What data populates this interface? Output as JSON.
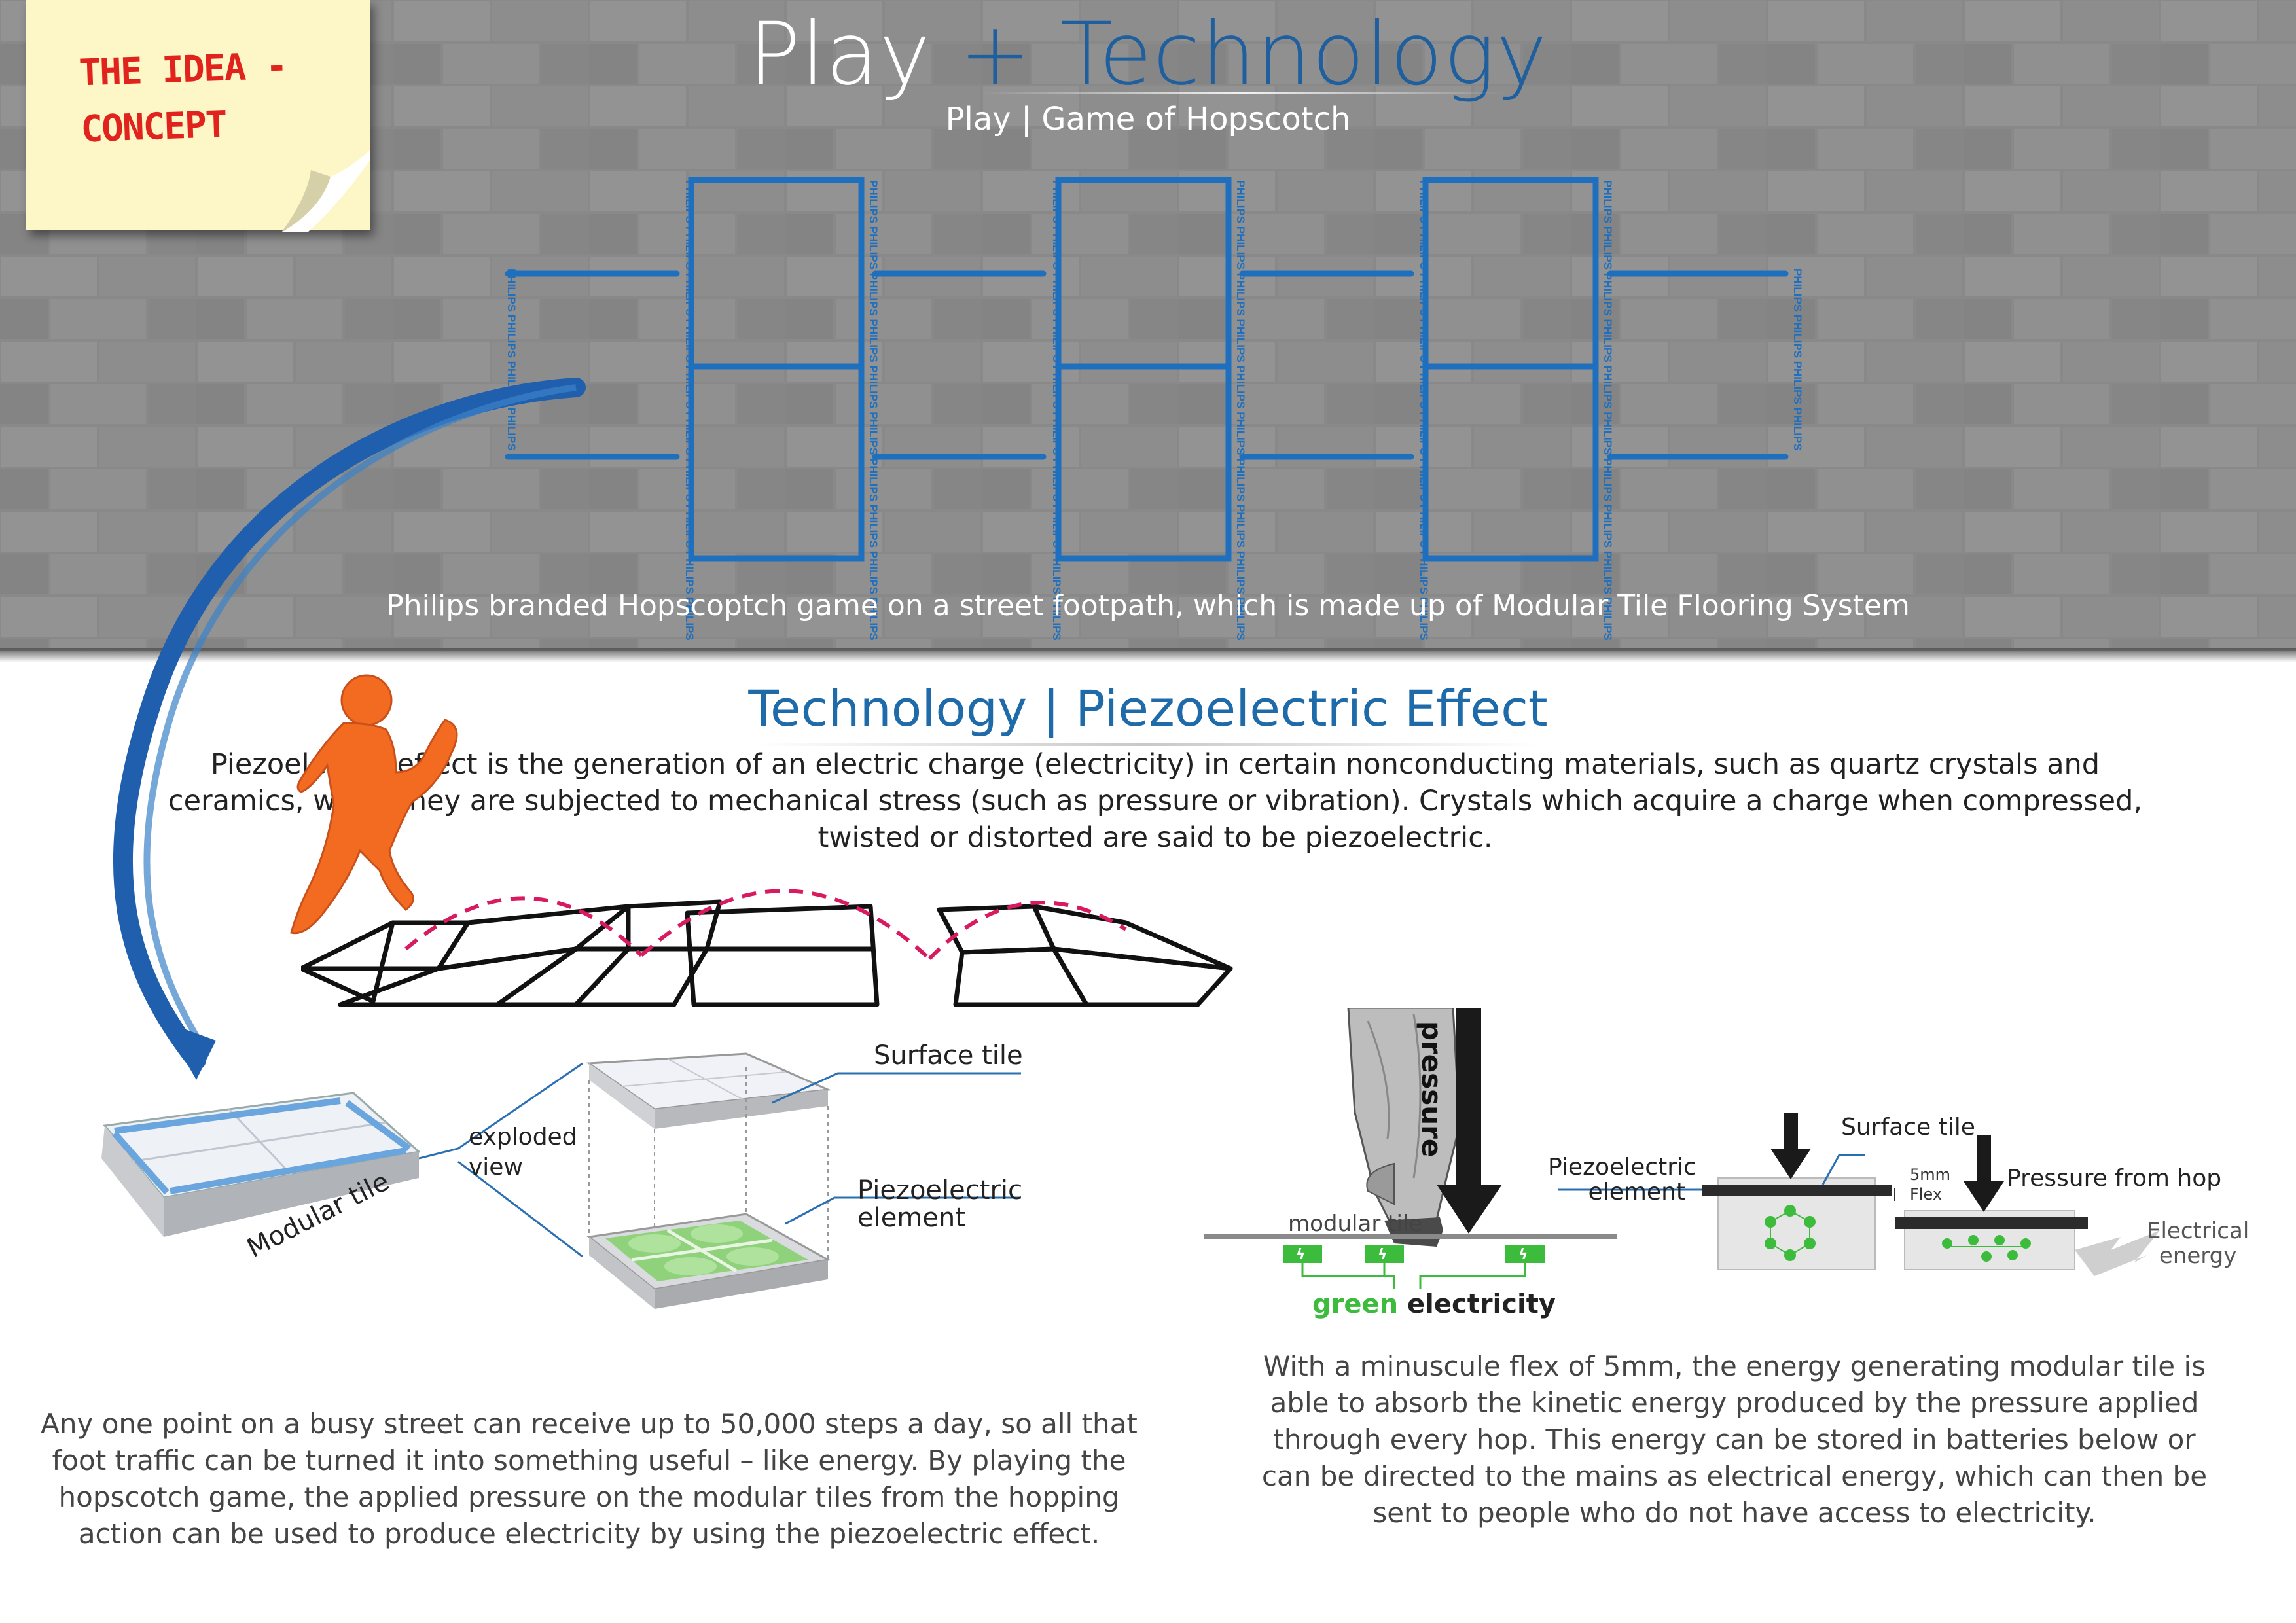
{
  "sticky_note": {
    "line1": "THE IDEA -",
    "line2": "CONCEPT"
  },
  "header": {
    "title_word1": "Play",
    "title_word2": "+ Technology",
    "subtitle": "Play | Game of Hopscotch"
  },
  "hopscotch_tiles": {
    "brand": "PHILIPS"
  },
  "band_caption": "Philips branded Hopscoptch game on a street footpath, which is made up of Modular Tile Flooring System",
  "technology": {
    "title": "Technology | Piezoelectric Effect",
    "definition": "Piezoelectric effect is the generation of an electric charge (electricity) in certain nonconducting materials, such as quartz crystals and ceramics, when they are subjected to mechanical stress (such as pressure or vibration). Crystals which acquire a charge when compressed, twisted or distorted are said to be piezoelectric."
  },
  "tile_diagram": {
    "modular_tile": "Modular tile",
    "exploded_view_line1": "exploded",
    "exploded_view_line2": "view",
    "surface_tile": "Surface tile",
    "piezo_element_line1": "Piezoelectric",
    "piezo_element_line2": "element",
    "paragraph": "Any one point on a busy street can receive up to 50,000 steps a day, so all that foot traffic can be turned it into something useful – like energy. By playing the hopscotch game, the applied pressure on the modular tiles from the hopping action can be used to produce electricity by using the piezoelectric effect."
  },
  "energy_diagram": {
    "pressure": "pressure",
    "modular_tile": "modular tile",
    "green_word": "green",
    "electricity_word": "electricity",
    "surface_tile": "Surface tile",
    "piezo_element_line1": "Piezoelectric",
    "piezo_element_line2": "element",
    "flex_value": "5mm",
    "flex_word": "Flex",
    "pressure_from_hop": "Pressure from hop",
    "electrical_line1": "Electrical",
    "electrical_line2": "energy",
    "paragraph": "With a minuscule flex of 5mm, the energy generating modular tile is able to absorb the kinetic energy produced by the pressure applied through every hop. This energy can be stored in batteries below or can be directed to the mains as electrical energy, which can then be sent to people who do not have access to electricity."
  },
  "colors": {
    "accent_blue": "#1f5f9e",
    "tile_blue": "#1f6fbf",
    "figure_orange": "#f26b21",
    "arc_pink": "#d81b60",
    "green": "#3dbb3d",
    "note_red": "#e0231d"
  }
}
